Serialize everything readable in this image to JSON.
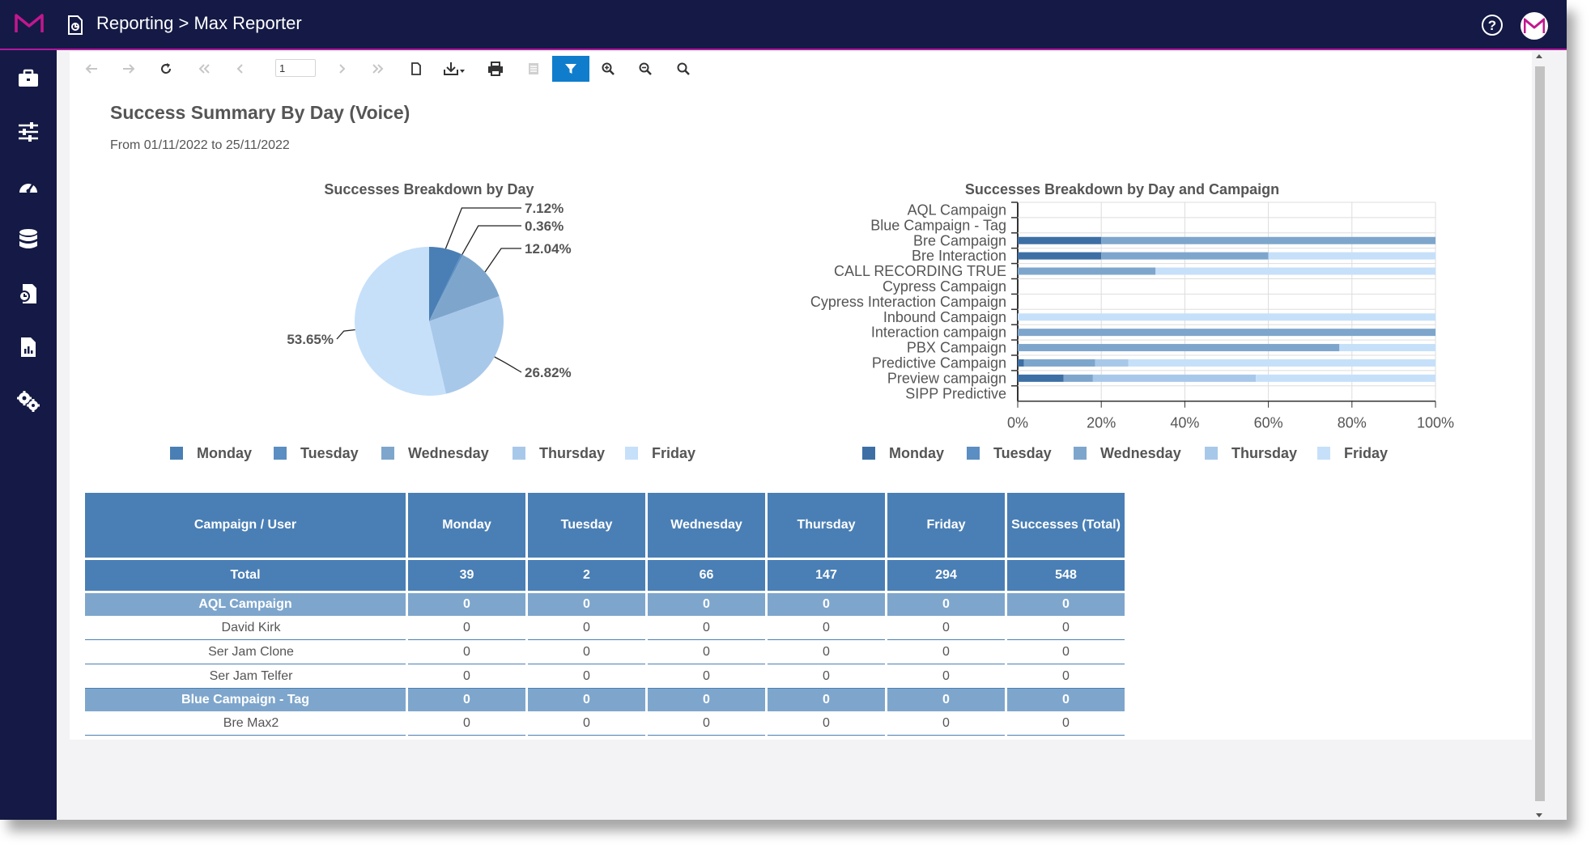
{
  "header": {
    "title": "Reporting > Max Reporter",
    "help_icon": "help-circle-icon",
    "user_icon": "user-avatar-icon",
    "brand_color": "#141a45",
    "accent_color": "#b5179e"
  },
  "sidebar": {
    "items": [
      {
        "icon": "briefcase-icon"
      },
      {
        "icon": "sliders-icon"
      },
      {
        "icon": "gauge-icon"
      },
      {
        "icon": "database-icon"
      },
      {
        "icon": "file-export-icon"
      },
      {
        "icon": "report-file-icon"
      },
      {
        "icon": "settings-gears-icon"
      }
    ]
  },
  "toolbar": {
    "page_value": "1",
    "buttons": [
      "undo-icon",
      "redo-icon",
      "refresh-icon",
      "first-page-icon",
      "previous-page-icon",
      "next-page-icon",
      "last-page-icon",
      "page-setup-icon",
      "export-icon",
      "print-icon",
      "print-page-icon",
      "filter-icon",
      "zoom-in-icon",
      "zoom-out-icon",
      "zoom-icon"
    ],
    "active": "filter-icon",
    "active_color": "#0f7dcc"
  },
  "report": {
    "title": "Success Summary By Day (Voice)",
    "range": "From 01/11/2022 to 25/11/2022"
  },
  "chart_data": [
    {
      "type": "pie",
      "title": "Successes Breakdown by Day",
      "categories": [
        "Monday",
        "Tuesday",
        "Wednesday",
        "Thursday",
        "Friday"
      ],
      "values": [
        39,
        2,
        66,
        147,
        294
      ],
      "labels": [
        "7.12%",
        "0.36%",
        "12.04%",
        "26.82%",
        "53.65%"
      ],
      "colors": [
        "#4a7fb5",
        "#5b8ec2",
        "#7ea6cc",
        "#a8c8ea",
        "#c6e0fa"
      ],
      "legend": "bottom"
    },
    {
      "type": "bar",
      "orientation": "horizontal",
      "stacked": "percent",
      "title": "Successes Breakdown by Day and Campaign",
      "categories": [
        "AQL Campaign",
        "Blue Campaign - Tag",
        "Bre Campaign",
        "Bre Interaction",
        "CALL RECORDING TRUE",
        "Cypress Campaign",
        "Cypress Interaction Campaign",
        "Inbound Campaign",
        "Interaction campaign",
        "PBX Campaign",
        "Predictive Campaign",
        "Preview campaign",
        "SIPP Predictive"
      ],
      "series": [
        {
          "name": "Monday",
          "values": [
            0,
            0,
            20,
            20,
            0,
            0,
            0,
            0,
            0,
            0,
            1.5,
            11,
            0
          ]
        },
        {
          "name": "Tuesday",
          "values": [
            0,
            0,
            0,
            0,
            0,
            0,
            0,
            0,
            0,
            0,
            0,
            0,
            0
          ]
        },
        {
          "name": "Wednesday",
          "values": [
            0,
            0,
            80,
            40,
            33,
            0,
            0,
            0,
            100,
            77,
            17,
            7,
            0
          ]
        },
        {
          "name": "Thursday",
          "values": [
            0,
            0,
            0,
            0,
            0,
            0,
            0,
            0,
            0,
            0,
            8,
            39,
            0
          ]
        },
        {
          "name": "Friday",
          "values": [
            0,
            0,
            0,
            40,
            67,
            0,
            0,
            100,
            0,
            23,
            73.5,
            43,
            0
          ]
        }
      ],
      "colors": [
        "#3d6fa5",
        "#5b8ec2",
        "#7ea6cc",
        "#a8c8ea",
        "#c6e0fa"
      ],
      "xticks": [
        "0%",
        "20%",
        "40%",
        "60%",
        "80%",
        "100%"
      ],
      "xlim": [
        0,
        100
      ],
      "grid": true,
      "legend": "bottom"
    }
  ],
  "table": {
    "headers": [
      "Campaign / User",
      "Monday",
      "Tuesday",
      "Wednesday",
      "Thursday",
      "Friday",
      "Successes (Total)"
    ],
    "rows": [
      {
        "kind": "total",
        "cells": [
          "Total",
          "39",
          "2",
          "66",
          "147",
          "294",
          "548"
        ]
      },
      {
        "kind": "group",
        "cells": [
          "AQL Campaign",
          "0",
          "0",
          "0",
          "0",
          "0",
          "0"
        ]
      },
      {
        "kind": "user",
        "cells": [
          "David Kirk",
          "0",
          "0",
          "0",
          "0",
          "0",
          "0"
        ]
      },
      {
        "kind": "user",
        "cells": [
          "Ser Jam Clone",
          "0",
          "0",
          "0",
          "0",
          "0",
          "0"
        ]
      },
      {
        "kind": "user",
        "cells": [
          "Ser Jam Telfer",
          "0",
          "0",
          "0",
          "0",
          "0",
          "0"
        ]
      },
      {
        "kind": "group",
        "cells": [
          "Blue Campaign - Tag",
          "0",
          "0",
          "0",
          "0",
          "0",
          "0"
        ]
      },
      {
        "kind": "user",
        "cells": [
          "Bre Max2",
          "0",
          "0",
          "0",
          "0",
          "0",
          "0"
        ]
      }
    ]
  }
}
